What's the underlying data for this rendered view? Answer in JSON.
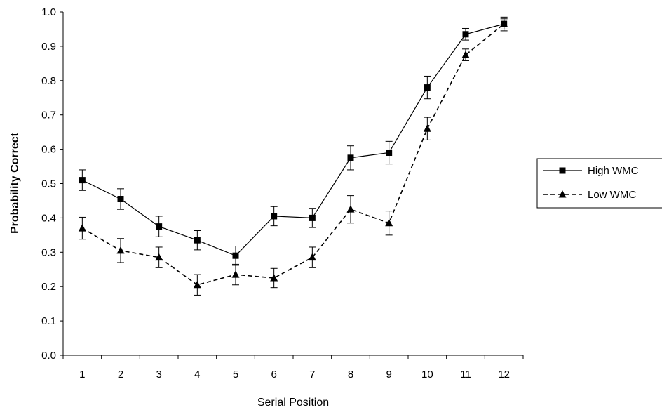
{
  "chart_data": {
    "type": "line",
    "title": "",
    "xlabel": "Serial Position",
    "ylabel": "Probability Correct",
    "x": [
      1,
      2,
      3,
      4,
      5,
      6,
      7,
      8,
      9,
      10,
      11,
      12
    ],
    "x_tick_labels": [
      "1",
      "2",
      "3",
      "4",
      "5",
      "6",
      "7",
      "8",
      "9",
      "10",
      "11",
      "12"
    ],
    "ylim": [
      0.0,
      1.0
    ],
    "y_ticks": [
      0.0,
      0.1,
      0.2,
      0.3,
      0.4,
      0.5,
      0.6,
      0.7,
      0.8,
      0.9,
      1.0
    ],
    "y_tick_labels": [
      "0.0",
      "0.1",
      "0.2",
      "0.3",
      "0.4",
      "0.5",
      "0.6",
      "0.7",
      "0.8",
      "0.9",
      "1.0"
    ],
    "grid": false,
    "legend_position": "right",
    "error_bars": true,
    "series": [
      {
        "name": "High WMC",
        "marker": "square",
        "line_style": "solid",
        "color": "#000000",
        "values": [
          0.51,
          0.455,
          0.375,
          0.335,
          0.29,
          0.405,
          0.4,
          0.575,
          0.59,
          0.78,
          0.935,
          0.965
        ],
        "errors": [
          0.03,
          0.03,
          0.03,
          0.028,
          0.028,
          0.028,
          0.028,
          0.035,
          0.033,
          0.033,
          0.017,
          0.02
        ]
      },
      {
        "name": "Low WMC",
        "marker": "triangle",
        "line_style": "dashed",
        "color": "#000000",
        "values": [
          0.37,
          0.305,
          0.285,
          0.205,
          0.235,
          0.225,
          0.285,
          0.425,
          0.385,
          0.66,
          0.875,
          0.965
        ],
        "errors": [
          0.032,
          0.035,
          0.03,
          0.03,
          0.03,
          0.028,
          0.03,
          0.04,
          0.035,
          0.033,
          0.017,
          0.015
        ]
      }
    ]
  }
}
